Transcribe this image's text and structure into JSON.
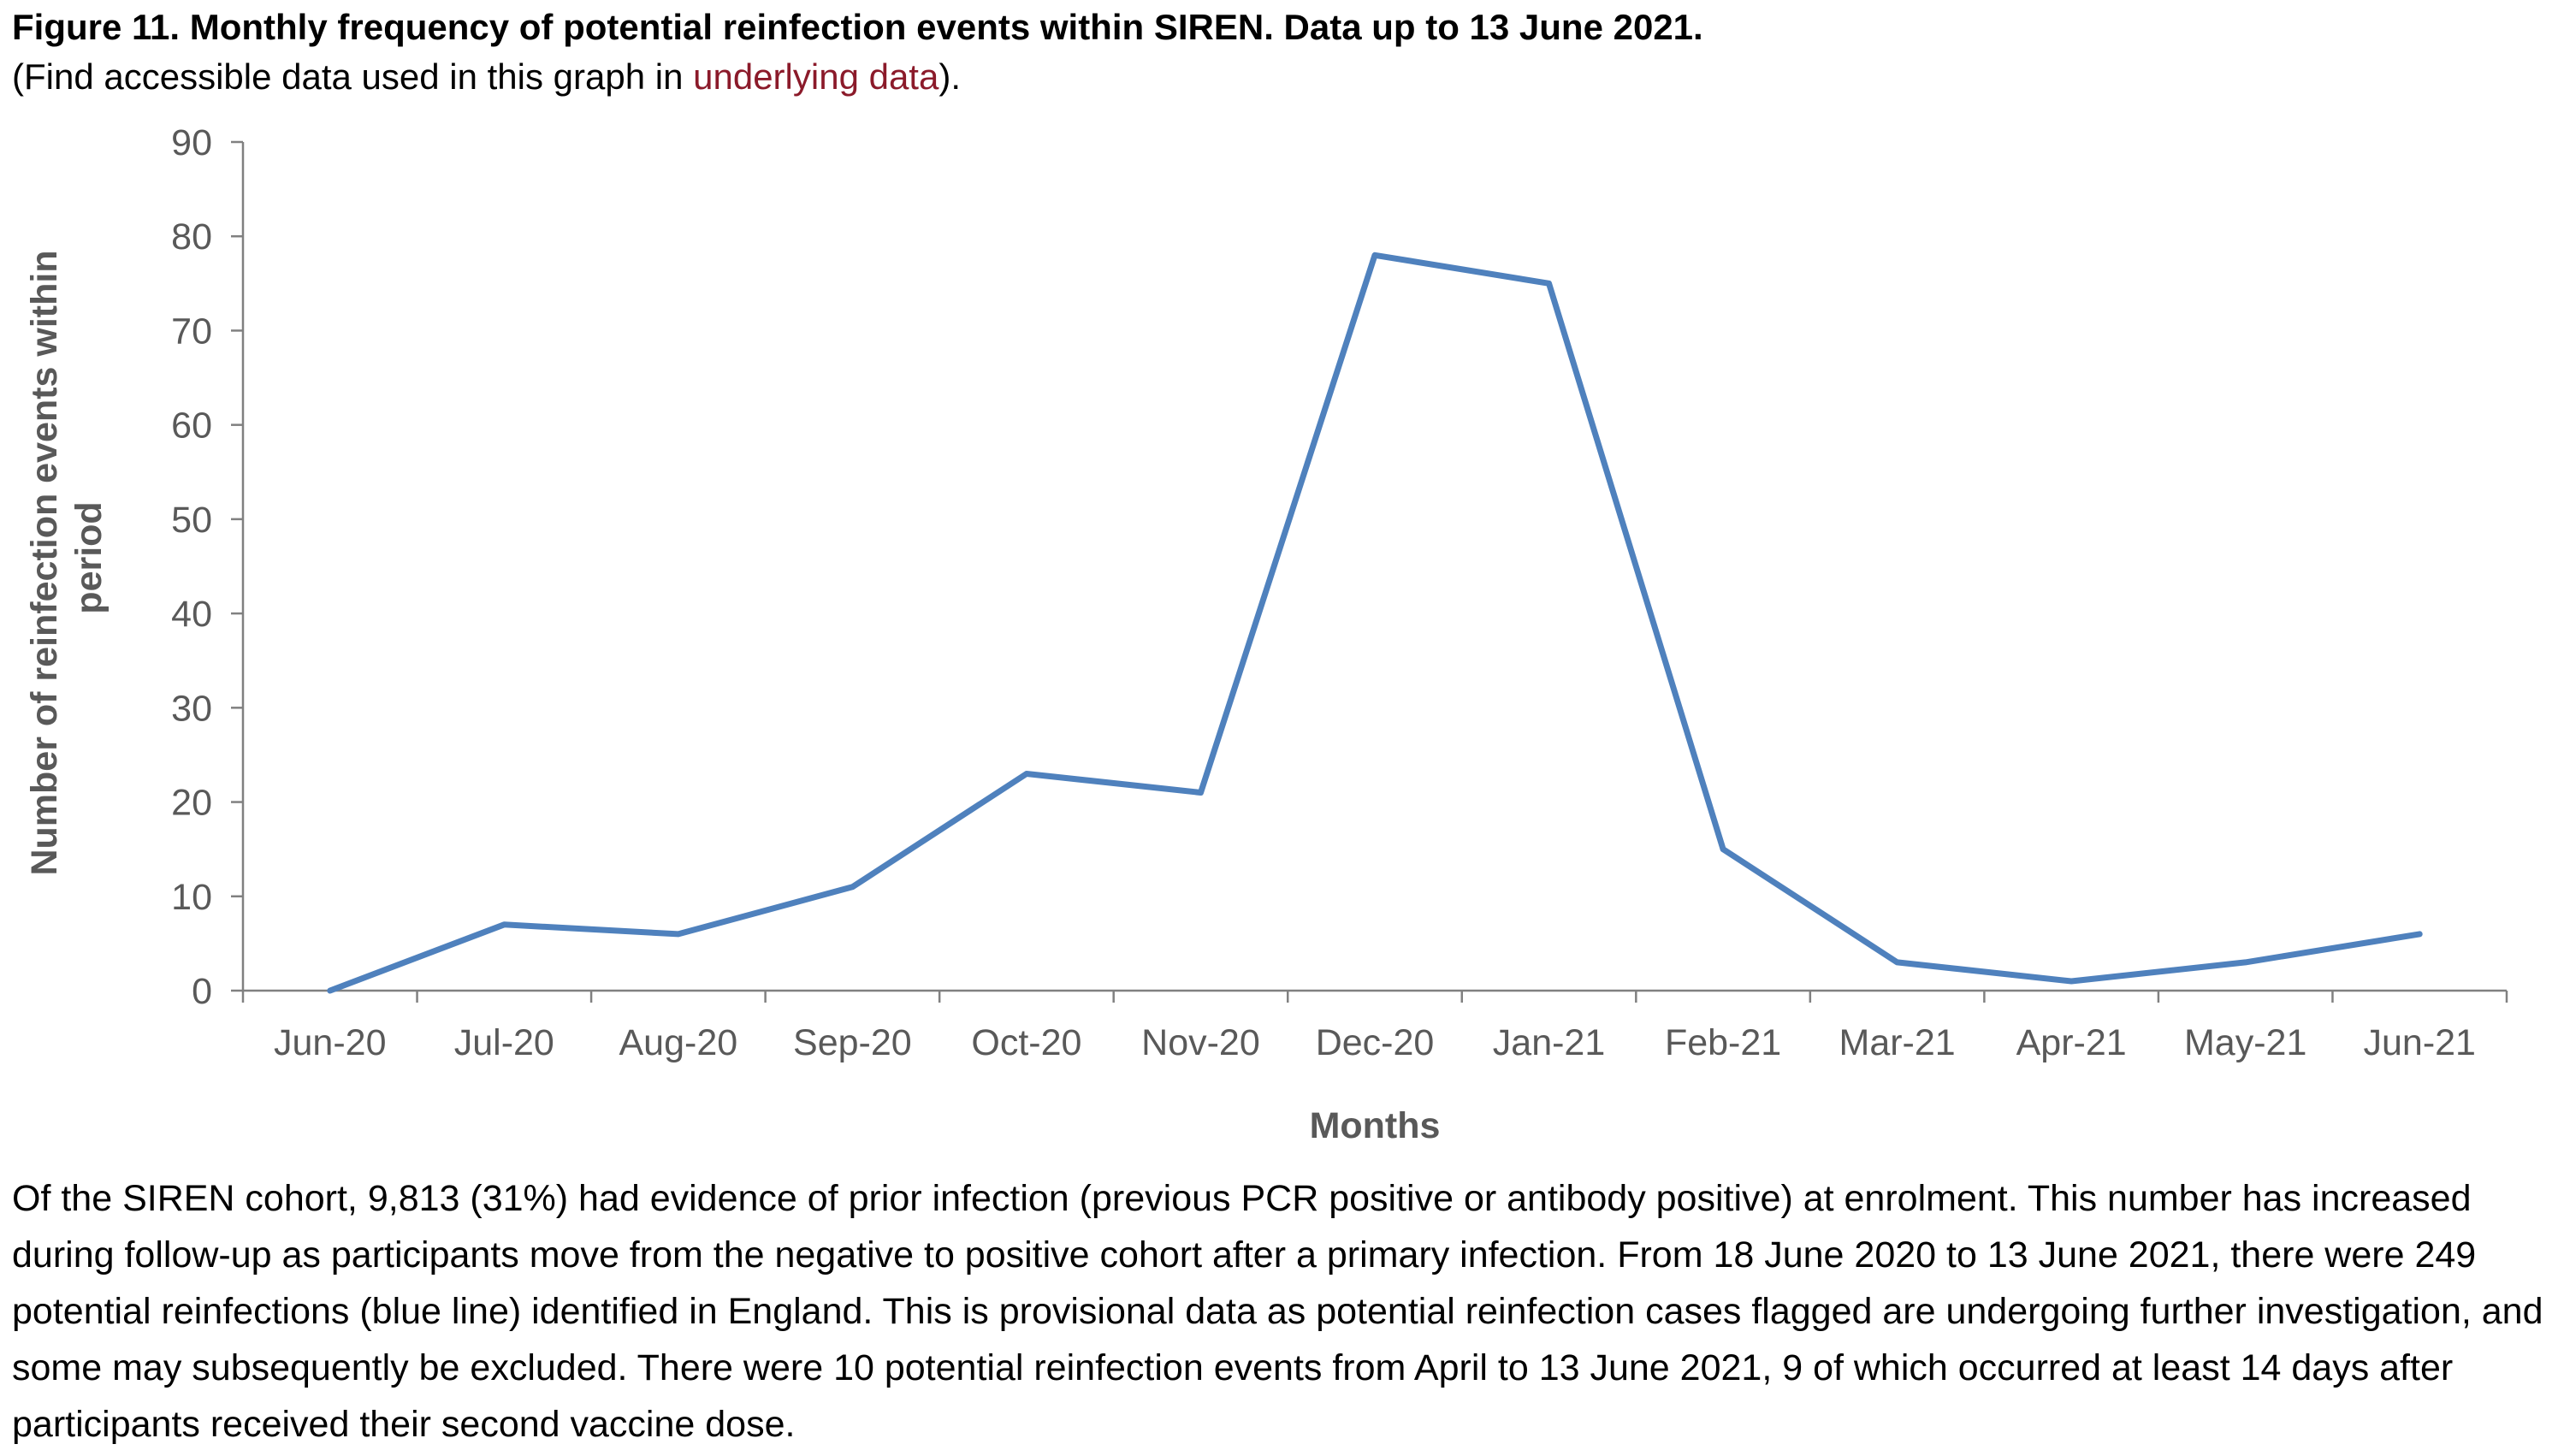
{
  "figure": {
    "title": "Figure 11. Monthly frequency of potential reinfection events within SIREN. Data up to 13 June 2021.",
    "subtitle_before": "(Find accessible data used in this graph in ",
    "subtitle_link": "underlying data",
    "subtitle_after": ")."
  },
  "chart_data": {
    "type": "line",
    "categories": [
      "Jun-20",
      "Jul-20",
      "Aug-20",
      "Sep-20",
      "Oct-20",
      "Nov-20",
      "Dec-20",
      "Jan-21",
      "Feb-21",
      "Mar-21",
      "Apr-21",
      "May-21",
      "Jun-21"
    ],
    "series": [
      {
        "values": [
          0,
          7,
          6,
          11,
          23,
          21,
          78,
          75,
          15,
          3,
          1,
          3,
          6
        ],
        "color": "#4f81bd"
      }
    ],
    "xlabel": "Months",
    "ylabel_line1": "Number of reinfection events within",
    "ylabel_line2": "period",
    "ylim": [
      0,
      90
    ],
    "yticks": [
      0,
      10,
      20,
      30,
      40,
      50,
      60,
      70,
      80,
      90
    ],
    "grid": false,
    "legend": "none"
  },
  "body_text": "Of the SIREN cohort, 9,813 (31%)  had evidence of prior infection (previous PCR positive or antibody positive) at enrolment.  This number has increased during follow-up as participants move from the negative to positive cohort after a primary infection. From 18 June 2020 to 13 June 2021, there were 249 potential reinfections (blue line) identified in England. This is provisional data as potential reinfection cases flagged are undergoing further investigation, and some may subsequently be excluded. There were 10 potential reinfection events from April to 13 June 2021, 9 of which occurred at least 14 days after participants received their second vaccine dose."
}
